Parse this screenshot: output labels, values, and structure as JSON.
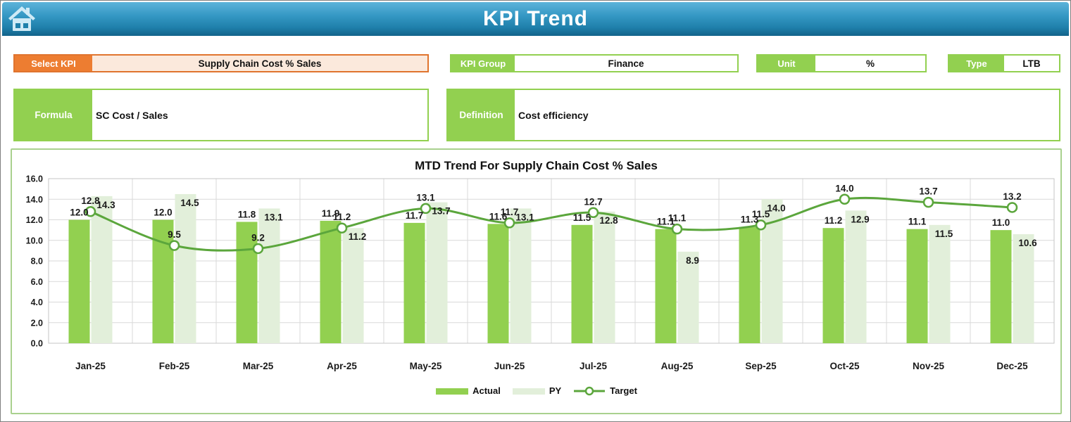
{
  "header": {
    "title": "KPI Trend"
  },
  "fields": {
    "select_kpi": {
      "label": "Select KPI",
      "value": "Supply Chain Cost % Sales"
    },
    "kpi_group": {
      "label": "KPI Group",
      "value": "Finance"
    },
    "unit": {
      "label": "Unit",
      "value": "%"
    },
    "type": {
      "label": "Type",
      "value": "LTB"
    },
    "formula": {
      "label": "Formula",
      "value": "SC Cost / Sales"
    },
    "definition": {
      "label": "Definition",
      "value": "Cost efficiency"
    }
  },
  "chart_data": {
    "type": "bar",
    "combo": "clustered bars + smoothed line with markers",
    "title": "MTD Trend For Supply Chain Cost % Sales",
    "categories": [
      "Jan-25",
      "Feb-25",
      "Mar-25",
      "Apr-25",
      "May-25",
      "Jun-25",
      "Jul-25",
      "Aug-25",
      "Sep-25",
      "Oct-25",
      "Nov-25",
      "Dec-25"
    ],
    "series": [
      {
        "name": "Actual",
        "type": "bar",
        "color": "#92D050",
        "values": [
          12.0,
          12.0,
          11.8,
          11.9,
          11.7,
          11.6,
          11.5,
          11.1,
          11.3,
          11.2,
          11.1,
          11.0
        ]
      },
      {
        "name": "PY",
        "type": "bar",
        "color": "#E2EFDA",
        "values": [
          14.3,
          14.5,
          13.1,
          11.2,
          13.7,
          13.1,
          12.8,
          8.9,
          14.0,
          12.9,
          11.5,
          10.6
        ]
      },
      {
        "name": "Target",
        "type": "line",
        "color": "#5BA63C",
        "values": [
          12.8,
          9.5,
          9.2,
          11.2,
          13.1,
          11.7,
          12.7,
          11.1,
          11.5,
          14.0,
          13.7,
          13.2
        ]
      }
    ],
    "xlabel": "",
    "ylabel": "",
    "ylim": [
      0,
      16
    ],
    "ytick_step": 2,
    "ytick_format": "one-decimal",
    "grid": true,
    "legend_position": "bottom"
  },
  "colors": {
    "header_gradient_top": "#5cb3da",
    "header_gradient_bottom": "#12638a",
    "accent_orange": "#ED7D31",
    "accent_orange_fill": "#FBE9DC",
    "accent_green": "#92D050",
    "py_green": "#E2EFDA",
    "line_green": "#5BA63C",
    "panel_border_green": "#A9D18E",
    "gridline": "#D9D9D9"
  },
  "icons": {
    "home": "home-icon"
  }
}
